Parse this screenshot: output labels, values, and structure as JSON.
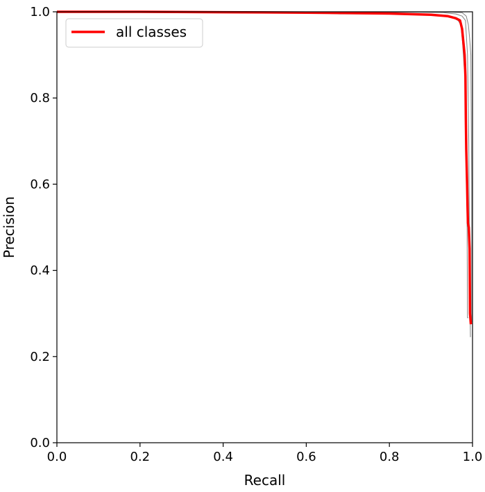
{
  "chart_data": {
    "type": "line",
    "title": "",
    "xlabel": "Recall",
    "ylabel": "Precision",
    "xlim": [
      0,
      1
    ],
    "ylim": [
      0,
      1
    ],
    "grid": false,
    "legend": {
      "placement": "top-left",
      "entries": [
        "all classes"
      ]
    },
    "xticks": [
      "0.0",
      "0.2",
      "0.4",
      "0.6",
      "0.8",
      "1.0"
    ],
    "yticks": [
      "0.0",
      "0.2",
      "0.4",
      "0.6",
      "0.8",
      "1.0"
    ],
    "series": [
      {
        "name": "",
        "color": "#808080",
        "x": [
          0.0,
          0.2,
          0.45,
          0.6,
          0.68,
          0.8,
          0.9,
          0.93,
          0.955,
          0.965,
          0.972,
          0.976,
          0.98,
          0.982,
          0.985,
          0.987,
          0.988,
          0.988,
          0.99
        ],
        "y": [
          1.0,
          1.0,
          0.999,
          0.998,
          0.995,
          0.995,
          0.993,
          0.99,
          0.985,
          0.98,
          0.97,
          0.93,
          0.87,
          0.86,
          0.7,
          0.5,
          0.29,
          0.29,
          0.29
        ]
      },
      {
        "name": "",
        "color": "#808080",
        "x": [
          0.0,
          0.5,
          0.7,
          0.85,
          0.93,
          0.96,
          0.975,
          0.983,
          0.988,
          0.991,
          0.993,
          0.995,
          0.995
        ],
        "y": [
          1.0,
          1.0,
          1.0,
          0.999,
          0.998,
          0.995,
          0.99,
          0.98,
          0.9,
          0.7,
          0.4,
          0.245,
          0.245
        ]
      },
      {
        "name": "",
        "color": "#808080",
        "x": [
          0.0,
          0.5,
          0.8,
          0.9,
          0.95,
          0.975,
          0.985,
          0.99,
          0.993,
          0.996,
          0.998,
          0.998
        ],
        "y": [
          1.0,
          1.0,
          1.0,
          1.0,
          0.999,
          0.998,
          0.99,
          0.97,
          0.94,
          0.9,
          0.6,
          0.28
        ]
      },
      {
        "name": "all classes",
        "color": "#ff0000",
        "x": [
          0.0,
          0.2,
          0.4,
          0.6,
          0.8,
          0.9,
          0.94,
          0.96,
          0.97,
          0.975,
          0.978,
          0.981,
          0.983,
          0.984,
          0.985,
          0.986,
          0.987,
          0.988,
          0.989,
          0.991,
          0.993,
          0.994,
          0.996
        ],
        "y": [
          1.0,
          1.0,
          0.999,
          0.998,
          0.996,
          0.993,
          0.99,
          0.985,
          0.98,
          0.96,
          0.93,
          0.9,
          0.85,
          0.75,
          0.68,
          0.64,
          0.6,
          0.55,
          0.51,
          0.5,
          0.45,
          0.3,
          0.275
        ]
      }
    ]
  }
}
